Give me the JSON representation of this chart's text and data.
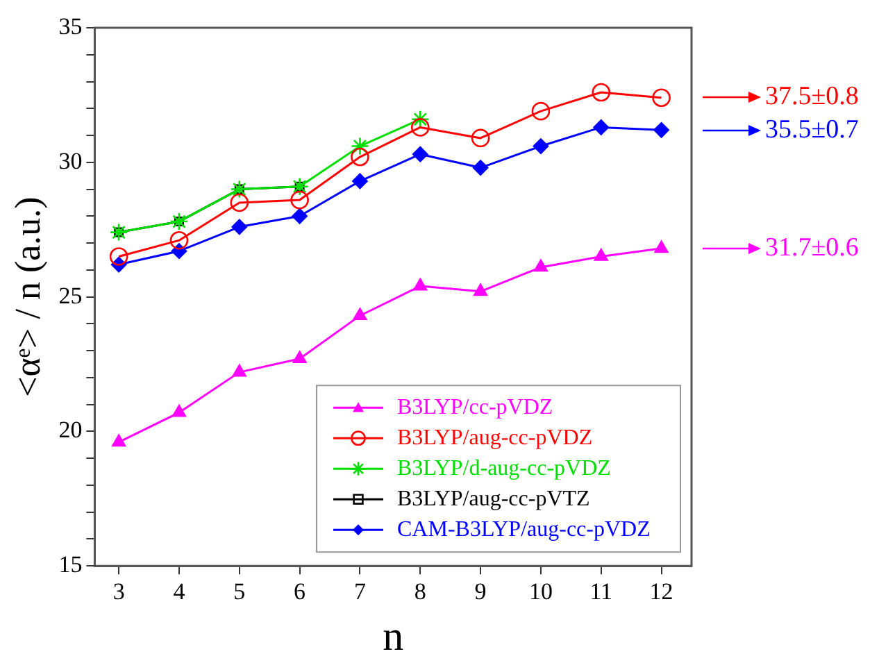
{
  "chart_data": {
    "type": "line",
    "xlabel": "n",
    "ylabel": "<αᵉ> / n (a.u.)",
    "x": [
      3,
      4,
      5,
      6,
      7,
      8,
      9,
      10,
      11,
      12
    ],
    "xlim": [
      2.6,
      12.5
    ],
    "xticks": [
      3,
      4,
      5,
      6,
      7,
      8,
      9,
      10,
      11,
      12
    ],
    "ylim": [
      15,
      35
    ],
    "yticks": [
      15,
      {
        "value": 16,
        "label": null
      },
      {
        "value": 17,
        "label": null
      },
      {
        "value": 18,
        "label": null
      },
      {
        "value": 19,
        "label": null
      },
      20,
      {
        "value": 21,
        "label": null
      },
      {
        "value": 22,
        "label": null
      },
      {
        "value": 23,
        "label": null
      },
      {
        "value": 24,
        "label": null
      },
      25,
      {
        "value": 26,
        "label": null
      },
      {
        "value": 27,
        "label": null
      },
      {
        "value": 28,
        "label": null
      },
      {
        "value": 29,
        "label": null
      },
      30,
      {
        "value": 31,
        "label": null
      },
      {
        "value": 32,
        "label": null
      },
      {
        "value": 33,
        "label": null
      },
      {
        "value": 34,
        "label": null
      },
      35
    ],
    "grid": false,
    "legend": "bottom right",
    "line_style": "solid",
    "series": [
      {
        "name": "B3LYP/cc-pVDZ",
        "color": "#ff00ff",
        "marker": "triangle",
        "values": [
          19.6,
          20.7,
          22.2,
          22.7,
          24.3,
          25.4,
          25.2,
          26.1,
          26.5,
          26.8
        ]
      },
      {
        "name": "B3LYP/aug-cc-pVDZ",
        "color": "#ff0000",
        "marker": "circle",
        "values": [
          26.5,
          27.1,
          28.5,
          28.6,
          30.2,
          31.3,
          30.9,
          31.9,
          32.6,
          32.4
        ]
      },
      {
        "name": "B3LYP/d-aug-cc-pVDZ",
        "color": "#00dd00",
        "marker": "cross",
        "values": [
          27.4,
          27.8,
          29.0,
          29.1,
          30.6,
          31.6,
          null,
          null,
          null,
          null
        ]
      },
      {
        "name": "B3LYP/aug-cc-pVTZ",
        "color": "#000000",
        "marker": "square",
        "values": [
          27.4,
          27.8,
          29.0,
          29.1,
          null,
          null,
          null,
          null,
          null,
          null
        ]
      },
      {
        "name": "CAM-B3LYP/aug-cc-pVDZ",
        "color": "#0000ff",
        "marker": "diamond",
        "values": [
          26.2,
          26.7,
          27.6,
          28.0,
          29.3,
          30.3,
          29.8,
          30.6,
          31.3,
          31.2
        ]
      }
    ],
    "annotations": [
      "37.5±0.8",
      "35.5±0.7",
      "31.7±0.6"
    ]
  }
}
